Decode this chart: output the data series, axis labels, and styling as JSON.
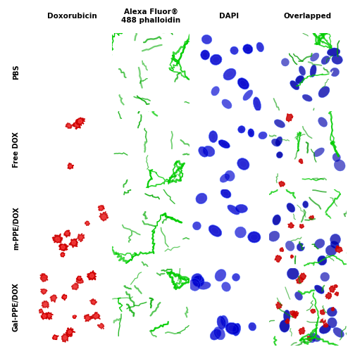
{
  "col_labels": [
    "Doxorubicin",
    "Alexa Fluor®\n488 phalloidin",
    "DAPI",
    "Overlapped"
  ],
  "row_labels": [
    "PBS",
    "Free DOX",
    "m-PPE/DOX",
    "Gal-PPE/DOX"
  ],
  "header_bg": "#dde3e8",
  "row_label_bg": "#dde3e8",
  "fig_bg": "#ffffff",
  "header_fontsize": 7.5,
  "row_label_fontsize": 7.0,
  "nuc_counts": [
    12,
    10,
    8,
    14
  ],
  "red_spot_counts": [
    0,
    4,
    10,
    22
  ],
  "overlap_red_counts": [
    0,
    3,
    8,
    18
  ],
  "seeds": {
    "0_0": 10,
    "0_1": 11,
    "0_2": 12,
    "0_3": 13,
    "1_0": 20,
    "1_1": 21,
    "1_2": 22,
    "1_3": 23,
    "2_0": 30,
    "2_1": 31,
    "2_2": 32,
    "2_3": 33,
    "3_0": 40,
    "3_1": 41,
    "3_2": 42,
    "3_3": 43
  }
}
